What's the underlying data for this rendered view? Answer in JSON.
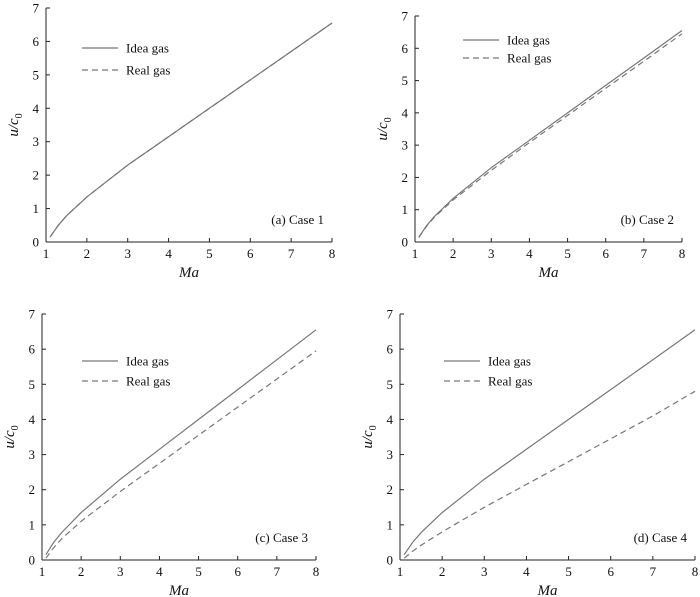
{
  "colors": {
    "ideal": "#777777",
    "real": "#777777",
    "axis": "#222222"
  },
  "chart_data": [
    {
      "type": "line",
      "annotation": "(a) Case 1",
      "xlabel": "Ma",
      "ylabel": "u/c",
      "ylabel_sub": "0",
      "xlim": [
        1,
        8
      ],
      "ylim": [
        0,
        7
      ],
      "xticks": [
        1,
        2,
        3,
        4,
        5,
        6,
        7,
        8
      ],
      "yticks": [
        0,
        1,
        2,
        3,
        4,
        5,
        6,
        7
      ],
      "legend": "top-left",
      "grid": false,
      "x": [
        1.1,
        1.3,
        1.5,
        2,
        3,
        4,
        5,
        6,
        7,
        8
      ],
      "series": [
        {
          "name": "Idea gas",
          "style": "solid",
          "values": [
            0.15,
            0.5,
            0.78,
            1.35,
            2.3,
            3.15,
            4.0,
            4.85,
            5.7,
            6.55
          ]
        },
        {
          "name": "Real gas",
          "style": "dashed",
          "values": [
            0.15,
            0.5,
            0.78,
            1.35,
            2.3,
            3.15,
            4.0,
            4.85,
            5.7,
            6.55
          ]
        }
      ]
    },
    {
      "type": "line",
      "annotation": "(b) Case 2",
      "xlabel": "Ma",
      "ylabel": "u/c",
      "ylabel_sub": "0",
      "xlim": [
        1,
        8
      ],
      "ylim": [
        0,
        7
      ],
      "xticks": [
        1,
        2,
        3,
        4,
        5,
        6,
        7,
        8
      ],
      "yticks": [
        0,
        1,
        2,
        3,
        4,
        5,
        6,
        7
      ],
      "legend": "top-left",
      "grid": false,
      "x": [
        1.1,
        1.3,
        1.5,
        2,
        3,
        4,
        5,
        6,
        7,
        8
      ],
      "series": [
        {
          "name": "Idea gas",
          "style": "solid",
          "values": [
            0.15,
            0.5,
            0.78,
            1.35,
            2.3,
            3.15,
            4.0,
            4.85,
            5.7,
            6.55
          ]
        },
        {
          "name": "Real gas",
          "style": "dashed",
          "values": [
            0.14,
            0.48,
            0.76,
            1.3,
            2.22,
            3.08,
            3.92,
            4.76,
            5.6,
            6.45
          ]
        }
      ]
    },
    {
      "type": "line",
      "annotation": "(c) Case 3",
      "xlabel": "Ma",
      "ylabel": "u/c",
      "ylabel_sub": "0",
      "xlim": [
        1,
        8
      ],
      "ylim": [
        0,
        7
      ],
      "xticks": [
        1,
        2,
        3,
        4,
        5,
        6,
        7,
        8
      ],
      "yticks": [
        0,
        1,
        2,
        3,
        4,
        5,
        6,
        7
      ],
      "legend": "top-left",
      "grid": false,
      "x": [
        1.1,
        1.3,
        1.5,
        2,
        3,
        4,
        5,
        6,
        7,
        8
      ],
      "series": [
        {
          "name": "Idea gas",
          "style": "solid",
          "values": [
            0.15,
            0.5,
            0.78,
            1.35,
            2.3,
            3.15,
            4.0,
            4.85,
            5.7,
            6.55
          ]
        },
        {
          "name": "Real gas",
          "style": "dashed",
          "values": [
            0.05,
            0.35,
            0.6,
            1.1,
            1.95,
            2.75,
            3.55,
            4.35,
            5.15,
            5.95
          ]
        }
      ]
    },
    {
      "type": "line",
      "annotation": "(d) Case 4",
      "xlabel": "Ma",
      "ylabel": "u/c",
      "ylabel_sub": "0",
      "xlim": [
        1,
        8
      ],
      "ylim": [
        0,
        7
      ],
      "xticks": [
        1,
        2,
        3,
        4,
        5,
        6,
        7,
        8
      ],
      "yticks": [
        0,
        1,
        2,
        3,
        4,
        5,
        6,
        7
      ],
      "legend": "top-left",
      "grid": false,
      "x": [
        1.1,
        1.3,
        1.5,
        2,
        3,
        4,
        5,
        6,
        7,
        8
      ],
      "series": [
        {
          "name": "Idea gas",
          "style": "solid",
          "values": [
            0.15,
            0.5,
            0.78,
            1.35,
            2.3,
            3.15,
            4.0,
            4.85,
            5.7,
            6.55
          ]
        },
        {
          "name": "Real gas",
          "style": "dashed",
          "values": [
            0.05,
            0.25,
            0.42,
            0.8,
            1.5,
            2.15,
            2.8,
            3.45,
            4.1,
            4.8
          ]
        }
      ]
    }
  ]
}
